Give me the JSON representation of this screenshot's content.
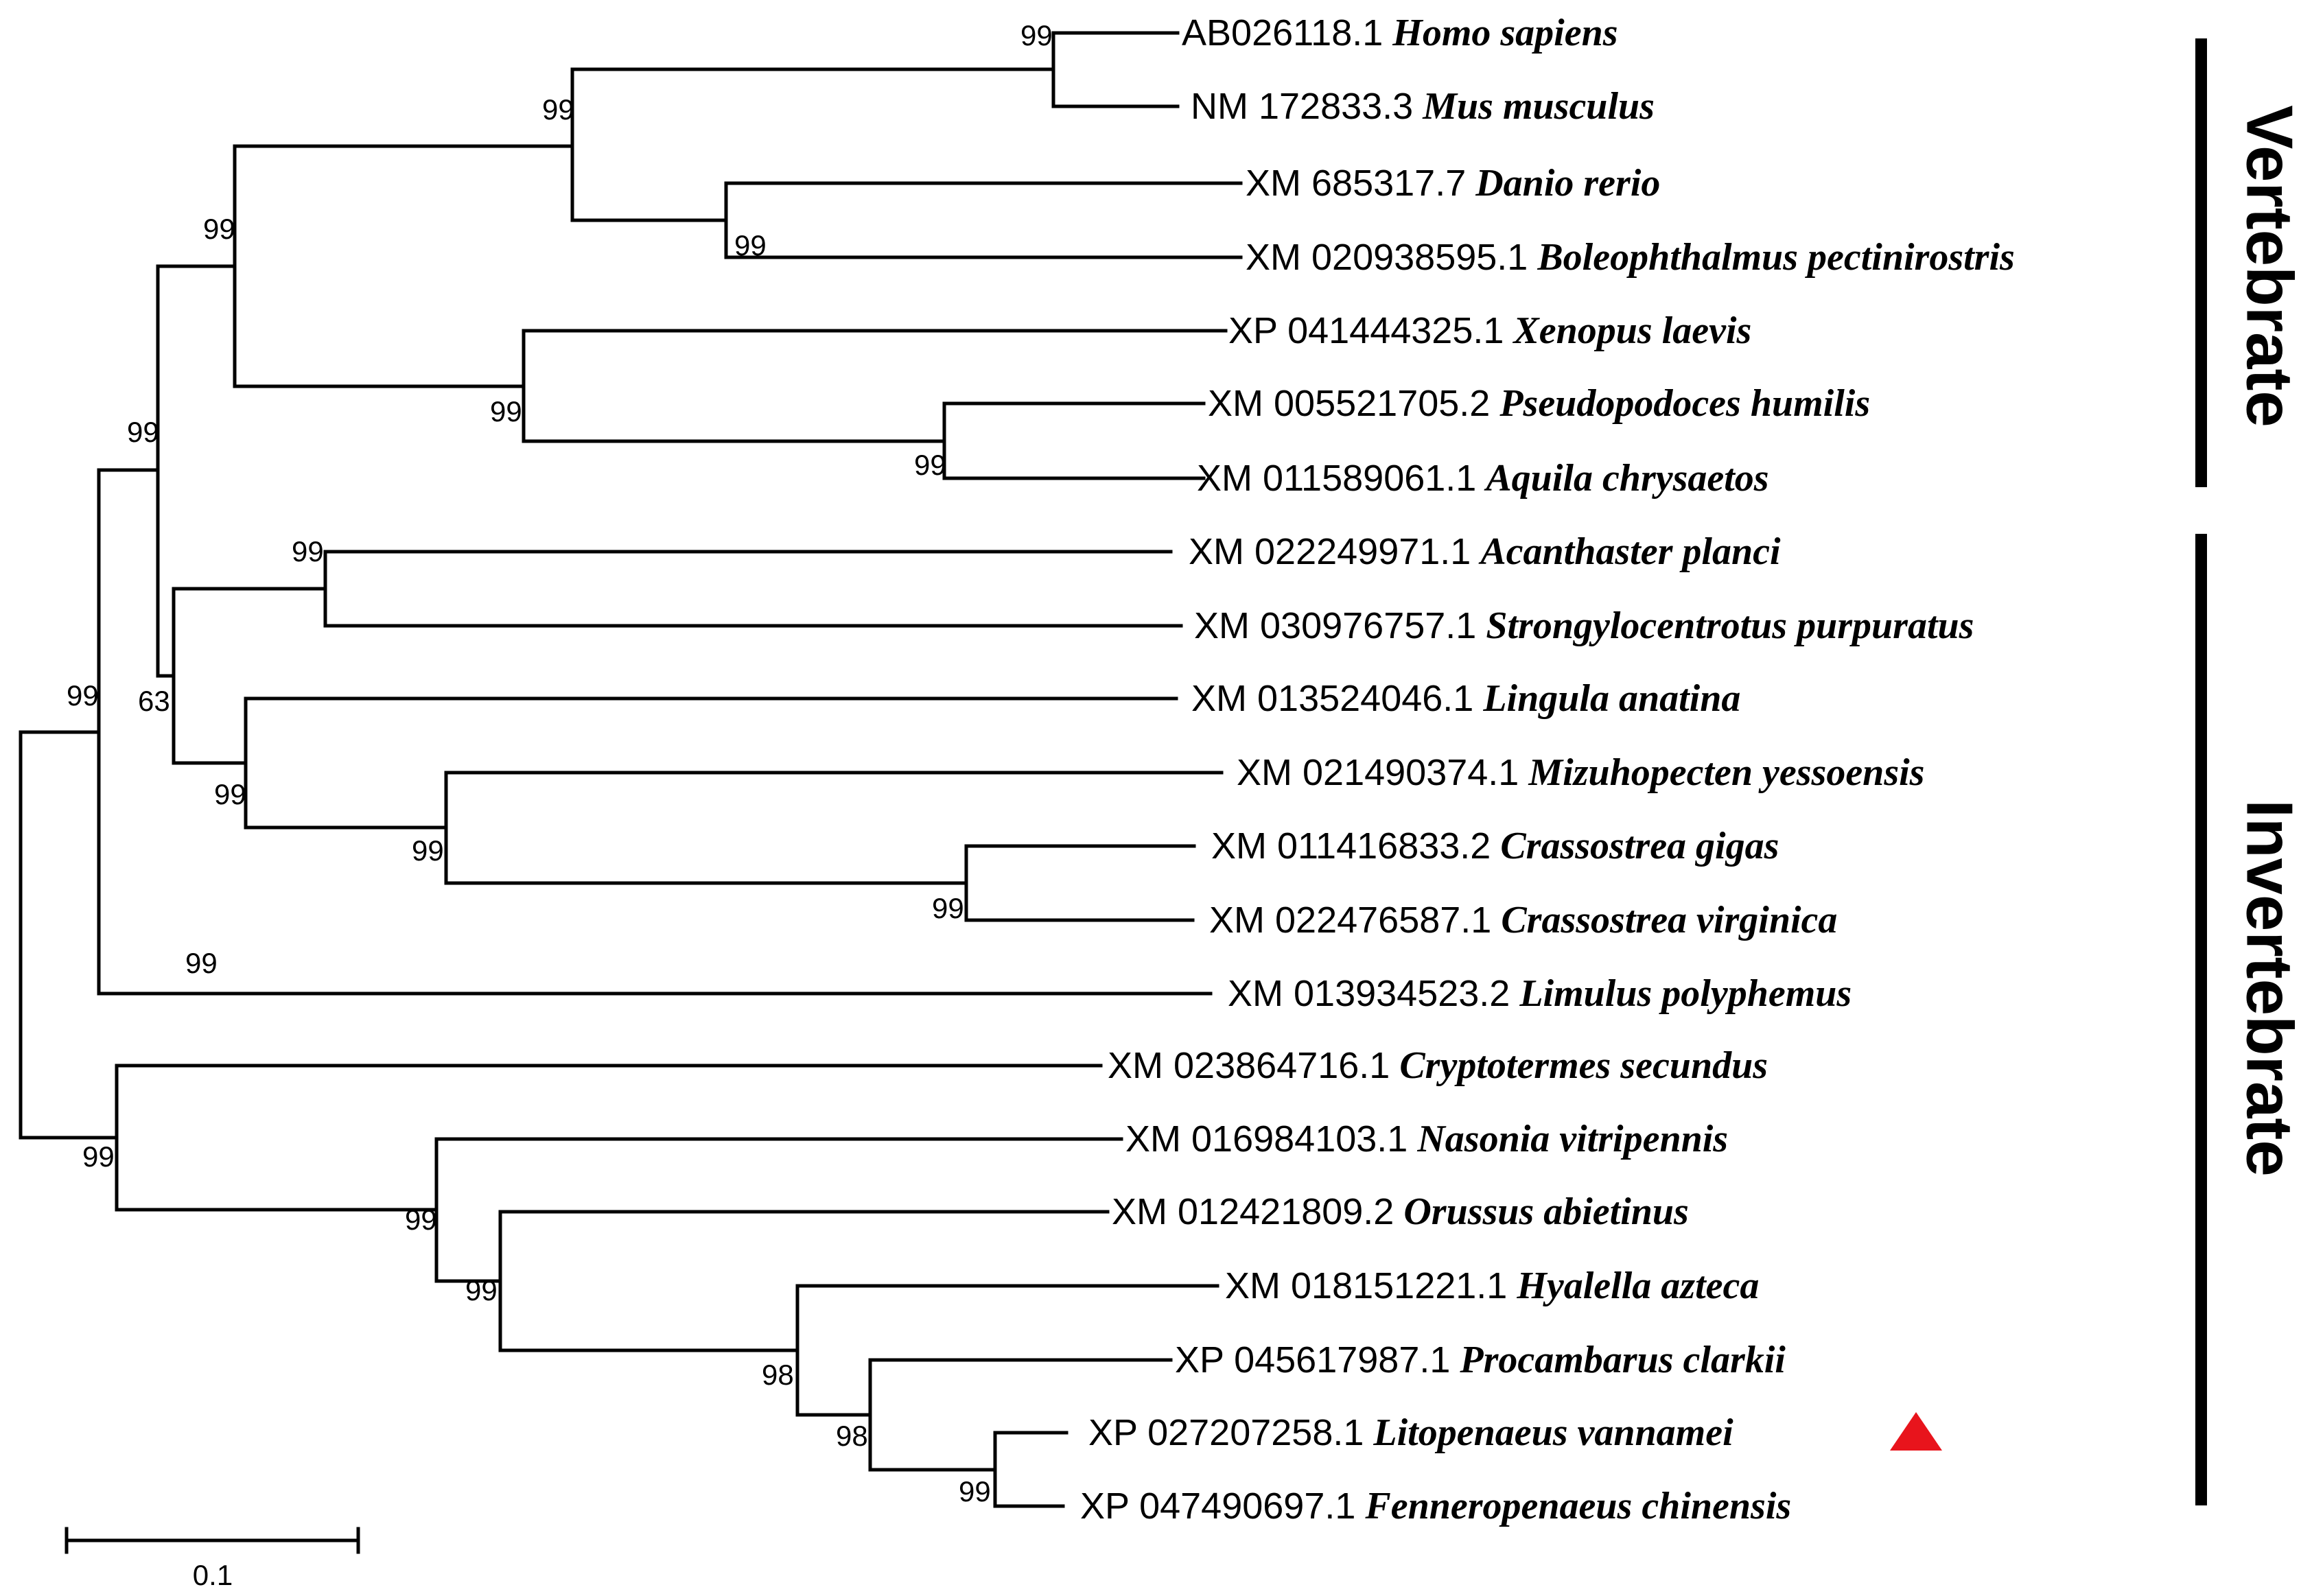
{
  "figure": {
    "type": "phylogenetic-tree",
    "scale_bar_label": "0.1",
    "marker_color": "#e8141c"
  },
  "taxa": [
    {
      "accession": "AB026118.1",
      "species": "Homo sapiens"
    },
    {
      "accession": "NM 172833.3",
      "species": "Mus musculus"
    },
    {
      "accession": "XM 685317.7",
      "species": "Danio rerio"
    },
    {
      "accession": "XM 020938595.1",
      "species": "Boleophthalmus pectinirostris"
    },
    {
      "accession": "XP 041444325.1",
      "species": "Xenopus laevis"
    },
    {
      "accession": "XM 005521705.2",
      "species": "Pseudopodoces humilis"
    },
    {
      "accession": "XM 011589061.1",
      "species": "Aquila chrysaetos"
    },
    {
      "accession": "XM 022249971.1",
      "species": "Acanthaster planci"
    },
    {
      "accession": "XM 030976757.1",
      "species": "Strongylocentrotus purpuratus"
    },
    {
      "accession": "XM 013524046.1",
      "species": "Lingula anatina"
    },
    {
      "accession": "XM 021490374.1",
      "species": "Mizuhopecten yessoensis"
    },
    {
      "accession": "XM 011416833.2",
      "species": "Crassostrea gigas"
    },
    {
      "accession": "XM 022476587.1",
      "species": "Crassostrea virginica"
    },
    {
      "accession": "XM 013934523.2",
      "species": "Limulus polyphemus"
    },
    {
      "accession": "XM 023864716.1",
      "species": "Cryptotermes secundus"
    },
    {
      "accession": "XM 016984103.1",
      "species": "Nasonia vitripennis"
    },
    {
      "accession": "XM 012421809.2",
      "species": "Orussus abietinus"
    },
    {
      "accession": "XM 018151221.1",
      "species": "Hyalella azteca"
    },
    {
      "accession": "XP 045617987.1",
      "species": "Procambarus clarkii"
    },
    {
      "accession": "XP 027207258.1",
      "species": "Litopenaeus vannamei",
      "highlighted": true
    },
    {
      "accession": "XP 047490697.1",
      "species": "Fenneropenaeus chinensis"
    }
  ],
  "bootstrap_values": [
    "99",
    "99",
    "99",
    "99",
    "99",
    "99",
    "99",
    "99",
    "63",
    "99",
    "99",
    "99",
    "99",
    "99",
    "99",
    "99",
    "98",
    "98",
    "99",
    "99"
  ],
  "groups": [
    {
      "label": "Vertebrate",
      "taxa_range": [
        1,
        7
      ]
    },
    {
      "label": "Invertebrate",
      "taxa_range": [
        8,
        21
      ]
    }
  ]
}
